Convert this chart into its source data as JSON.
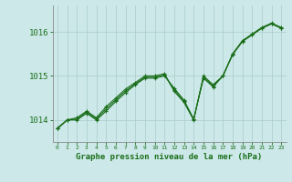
{
  "background_color": "#cce8e8",
  "plot_bg_color": "#cce8e8",
  "grid_color": "#aacccc",
  "line_color": "#1a6e1a",
  "xlabel": "Graphe pression niveau de la mer (hPa)",
  "ylim": [
    1013.5,
    1016.6
  ],
  "xlim": [
    -0.5,
    23.5
  ],
  "yticks": [
    1014,
    1015,
    1016
  ],
  "xticks": [
    0,
    1,
    2,
    3,
    4,
    5,
    6,
    7,
    8,
    9,
    10,
    11,
    12,
    13,
    14,
    15,
    16,
    17,
    18,
    19,
    20,
    21,
    22,
    23
  ],
  "line1": [
    1013.8,
    1014.0,
    1014.05,
    1014.2,
    1014.05,
    1014.3,
    1014.5,
    1014.7,
    1014.85,
    1015.0,
    1015.0,
    1015.05,
    1014.65,
    1014.4,
    1014.0,
    1015.0,
    1014.8,
    1015.0,
    1015.5,
    1015.8,
    1015.95,
    1016.1,
    1016.2,
    1016.1
  ],
  "line2": [
    1013.8,
    1014.0,
    1014.0,
    1014.15,
    1014.0,
    1014.2,
    1014.42,
    1014.62,
    1014.8,
    1014.95,
    1014.95,
    1015.0,
    1014.72,
    1014.45,
    1014.02,
    1014.95,
    1014.75,
    1015.0,
    1015.48,
    1015.78,
    1015.93,
    1016.08,
    1016.18,
    1016.08
  ],
  "line3": [
    1013.82,
    1014.0,
    1014.02,
    1014.18,
    1014.02,
    1014.25,
    1014.46,
    1014.66,
    1014.82,
    1014.97,
    1014.97,
    1015.02,
    1014.68,
    1014.42,
    1014.01,
    1014.97,
    1014.77,
    1015.0,
    1015.49,
    1015.79,
    1015.94,
    1016.09,
    1016.19,
    1016.09
  ]
}
